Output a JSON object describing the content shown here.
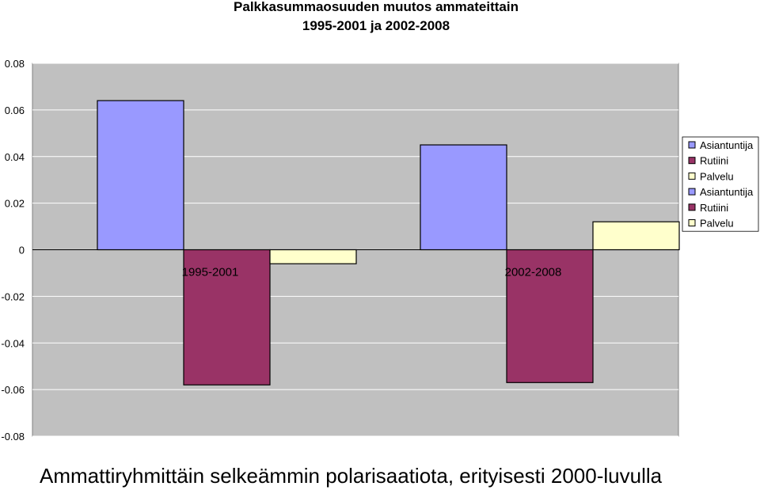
{
  "chart_data": {
    "type": "bar",
    "title": "Palkkasummaosuuden muutos ammateittain",
    "subtitle": "1995-2001 ja 2002-2008",
    "xlabel": "",
    "ylabel": "",
    "categories": [
      "1995-2001",
      "2002-2008"
    ],
    "series": [
      {
        "name": "Asiantuntija",
        "color": "#9999ff",
        "values": [
          0.064,
          0.045
        ]
      },
      {
        "name": "Rutiini",
        "color": "#993366",
        "values": [
          -0.058,
          -0.057
        ]
      },
      {
        "name": "Palvelu",
        "color": "#ffffcc",
        "values": [
          -0.006,
          0.012
        ]
      }
    ],
    "legend_entries": [
      "Asiantuntija",
      "Rutiini",
      "Palvelu",
      "Asiantuntija",
      "Rutiini",
      "Palvelu"
    ],
    "legend_colors": [
      "#9999ff",
      "#993366",
      "#ffffcc",
      "#9999ff",
      "#993366",
      "#ffffcc"
    ],
    "yticks": [
      "0.08",
      "0.06",
      "0.04",
      "0.02",
      "0",
      "-0.02",
      "-0.04",
      "-0.06",
      "-0.08"
    ],
    "ytick_values": [
      0.08,
      0.06,
      0.04,
      0.02,
      0,
      -0.02,
      -0.04,
      -0.06,
      -0.08
    ],
    "ylim": [
      -0.08,
      0.08
    ],
    "grid": true,
    "legend_position": "right",
    "plot_background": "#c0c0c0"
  },
  "caption": "Ammattiryhmittäin selkeämmin polarisaatiota, erityisesti 2000-luvulla"
}
